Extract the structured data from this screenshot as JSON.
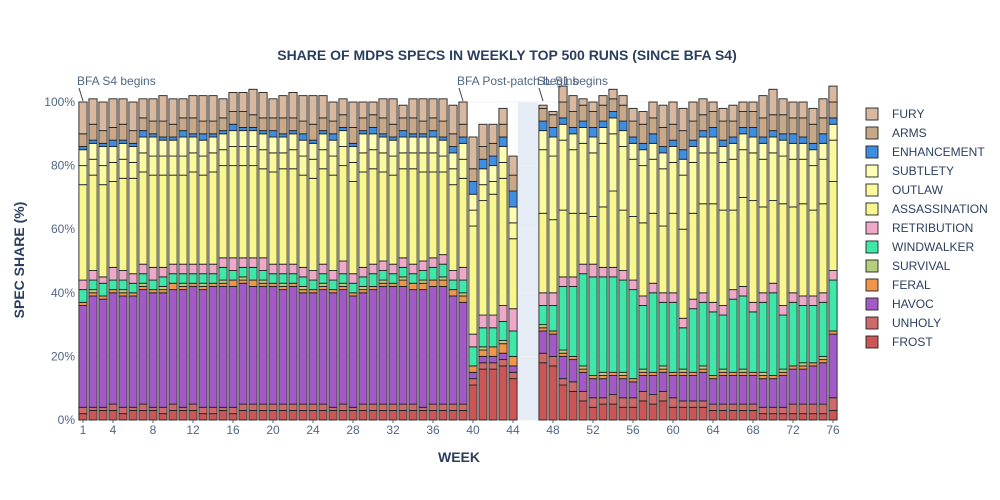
{
  "chart_data": {
    "type": "bar",
    "stacked": true,
    "title": "SHARE OF MDPS SPECS IN WEEKLY TOP 500 RUNS (SINCE BFA S4)",
    "xlabel": "WEEK",
    "ylabel": "SPEC SHARE (%)",
    "ylim": [
      0,
      100
    ],
    "y_ticks": [
      "0%",
      "20%",
      "40%",
      "60%",
      "80%",
      "100%"
    ],
    "x_ticks": [
      1,
      4,
      8,
      12,
      16,
      20,
      24,
      28,
      32,
      36,
      40,
      44,
      48,
      52,
      56,
      60,
      64,
      68,
      72,
      76
    ],
    "weeks": [
      1,
      2,
      3,
      4,
      5,
      6,
      7,
      8,
      9,
      10,
      11,
      12,
      13,
      14,
      15,
      16,
      17,
      18,
      19,
      20,
      21,
      22,
      23,
      24,
      25,
      26,
      27,
      28,
      29,
      30,
      31,
      32,
      33,
      34,
      35,
      36,
      37,
      38,
      39,
      40,
      41,
      42,
      43,
      44,
      47,
      48,
      49,
      50,
      51,
      52,
      53,
      54,
      55,
      56,
      57,
      58,
      59,
      60,
      61,
      62,
      63,
      64,
      65,
      66,
      67,
      68,
      69,
      70,
      71,
      72,
      73,
      74,
      75,
      76
    ],
    "gap_weeks": [
      45,
      46
    ],
    "legend_position": "right",
    "annotations": [
      {
        "week": 1,
        "text": "BFA S4 begins"
      },
      {
        "week": 39,
        "text": "BFA Post-patch begins"
      },
      {
        "week": 47,
        "text": "SL S1 begins"
      }
    ],
    "series": [
      {
        "name": "FROST",
        "color": "#cc5555",
        "values": [
          2,
          3,
          3,
          3,
          2,
          3,
          3,
          3,
          2,
          3,
          3,
          3,
          2,
          2,
          3,
          2,
          3,
          3,
          3,
          3,
          3,
          3,
          3,
          3,
          3,
          3,
          3,
          3,
          3,
          3,
          3,
          3,
          3,
          3,
          3,
          3,
          3,
          3,
          3,
          11,
          16,
          16,
          17,
          13,
          18,
          17,
          11,
          9,
          6,
          4,
          5,
          5,
          4,
          4,
          6,
          5,
          6,
          4,
          4,
          4,
          4,
          3,
          3,
          3,
          3,
          3,
          2,
          2,
          2,
          2,
          2,
          2,
          2,
          3
        ]
      },
      {
        "name": "UNHOLY",
        "color": "#d06a6a",
        "values": [
          2,
          1,
          1,
          2,
          2,
          1,
          2,
          1,
          2,
          2,
          1,
          2,
          2,
          2,
          1,
          2,
          2,
          2,
          2,
          2,
          2,
          2,
          2,
          2,
          2,
          1,
          2,
          1,
          2,
          2,
          2,
          2,
          2,
          2,
          1,
          2,
          2,
          2,
          2,
          2,
          2,
          2,
          2,
          2,
          3,
          3,
          2,
          3,
          3,
          3,
          2,
          3,
          3,
          3,
          3,
          3,
          3,
          3,
          2,
          2,
          2,
          2,
          2,
          2,
          2,
          2,
          2,
          2,
          2,
          3,
          3,
          3,
          3,
          4
        ]
      },
      {
        "name": "HAVOC",
        "color": "#a35ac8",
        "values": [
          32,
          35,
          34,
          35,
          35,
          35,
          36,
          36,
          36,
          36,
          37,
          37,
          37,
          38,
          38,
          38,
          38,
          37,
          37,
          37,
          36,
          37,
          35,
          35,
          36,
          36,
          36,
          35,
          35,
          36,
          37,
          37,
          37,
          36,
          37,
          37,
          37,
          34,
          32,
          2,
          2,
          2,
          2,
          2,
          7,
          7,
          7,
          7,
          6,
          6,
          6,
          6,
          6,
          5,
          5,
          6,
          6,
          7,
          8,
          8,
          9,
          8,
          9,
          9,
          9,
          9,
          9,
          9,
          10,
          11,
          11,
          12,
          13,
          20
        ]
      },
      {
        "name": "FERAL",
        "color": "#f0954a",
        "values": [
          1,
          1,
          1,
          1,
          1,
          1,
          1,
          1,
          1,
          2,
          1,
          1,
          1,
          1,
          1,
          2,
          1,
          2,
          1,
          1,
          1,
          1,
          1,
          1,
          1,
          1,
          1,
          1,
          1,
          1,
          1,
          1,
          2,
          2,
          2,
          2,
          2,
          2,
          2,
          2,
          2,
          3,
          3,
          3,
          1,
          1,
          1,
          1,
          1,
          1,
          1,
          1,
          1,
          1,
          1,
          1,
          1,
          1,
          1,
          1,
          1,
          1,
          1,
          1,
          1,
          1,
          1,
          1,
          1,
          1,
          1,
          1,
          1,
          1
        ]
      },
      {
        "name": "SURVIVAL",
        "color": "#b5cf7d",
        "values": [
          0,
          1,
          0,
          0,
          1,
          0,
          1,
          0,
          1,
          0,
          1,
          0,
          1,
          0,
          1,
          0,
          1,
          0,
          1,
          0,
          1,
          0,
          1,
          0,
          1,
          0,
          1,
          0,
          1,
          0,
          1,
          0,
          1,
          0,
          1,
          0,
          1,
          0,
          1,
          0,
          1,
          0,
          1,
          0,
          1,
          0,
          1,
          0,
          1,
          0,
          1,
          0,
          1,
          0,
          1,
          0,
          1,
          0,
          1,
          0,
          1,
          0,
          1,
          0,
          1,
          0,
          1,
          0,
          1,
          0,
          1,
          0,
          1,
          0
        ]
      },
      {
        "name": "WINDWALKER",
        "color": "#3ee8a8",
        "values": [
          4,
          3,
          4,
          3,
          3,
          3,
          3,
          3,
          3,
          3,
          3,
          3,
          3,
          3,
          4,
          3,
          3,
          4,
          3,
          3,
          3,
          3,
          3,
          3,
          3,
          3,
          3,
          3,
          3,
          4,
          3,
          3,
          3,
          3,
          3,
          4,
          4,
          3,
          4,
          6,
          6,
          6,
          6,
          8,
          6,
          8,
          20,
          22,
          29,
          31,
          30,
          30,
          29,
          28,
          20,
          25,
          20,
          22,
          13,
          20,
          20,
          20,
          17,
          23,
          23,
          19,
          22,
          26,
          17,
          20,
          18,
          18,
          17,
          16
        ]
      },
      {
        "name": "RETRIBUTION",
        "color": "#f0a8c8",
        "values": [
          3,
          3,
          2,
          4,
          3,
          3,
          3,
          4,
          3,
          3,
          3,
          3,
          3,
          3,
          3,
          4,
          3,
          3,
          4,
          3,
          3,
          3,
          3,
          3,
          3,
          3,
          4,
          3,
          3,
          3,
          3,
          3,
          3,
          3,
          3,
          3,
          3,
          3,
          4,
          4,
          4,
          4,
          5,
          7,
          4,
          4,
          3,
          3,
          3,
          4,
          3,
          3,
          3,
          3,
          3,
          3,
          3,
          3,
          3,
          3,
          3,
          3,
          3,
          3,
          3,
          3,
          3,
          3,
          3,
          3,
          3,
          3,
          3,
          3
        ]
      },
      {
        "name": "ASSASSINATION",
        "color": "#f7f78e",
        "values": [
          30,
          30,
          29,
          27,
          29,
          30,
          29,
          29,
          29,
          28,
          28,
          29,
          28,
          29,
          29,
          29,
          29,
          29,
          28,
          29,
          30,
          30,
          29,
          29,
          30,
          30,
          30,
          29,
          30,
          30,
          28,
          28,
          28,
          30,
          28,
          27,
          26,
          27,
          28,
          34,
          36,
          38,
          40,
          22,
          25,
          23,
          21,
          20,
          16,
          15,
          19,
          24,
          19,
          20,
          23,
          22,
          21,
          25,
          28,
          27,
          28,
          31,
          30,
          25,
          28,
          32,
          27,
          26,
          32,
          27,
          29,
          27,
          28,
          28
        ]
      },
      {
        "name": "OUTLAW",
        "color": "#fbfb9e",
        "values": [
          6,
          5,
          6,
          6,
          6,
          5,
          6,
          6,
          6,
          6,
          6,
          6,
          6,
          6,
          5,
          6,
          6,
          6,
          6,
          6,
          5,
          6,
          6,
          6,
          6,
          6,
          6,
          6,
          6,
          6,
          6,
          6,
          5,
          5,
          6,
          6,
          5,
          5,
          6,
          5,
          5,
          4,
          5,
          5,
          20,
          20,
          22,
          20,
          22,
          20,
          20,
          18,
          20,
          18,
          18,
          17,
          18,
          16,
          17,
          16,
          16,
          16,
          15,
          16,
          15,
          15,
          15,
          15,
          15,
          15,
          14,
          14,
          14,
          13
        ]
      },
      {
        "name": "SUBTLETY",
        "color": "#fdfdb4",
        "values": [
          5,
          5,
          6,
          5,
          5,
          5,
          5,
          6,
          5,
          5,
          6,
          5,
          5,
          5,
          5,
          5,
          5,
          5,
          5,
          5,
          5,
          5,
          5,
          5,
          5,
          5,
          5,
          5,
          6,
          5,
          5,
          5,
          5,
          5,
          5,
          5,
          5,
          5,
          5,
          5,
          5,
          5,
          5,
          5,
          6,
          6,
          5,
          5,
          5,
          5,
          5,
          5,
          5,
          5,
          5,
          5,
          5,
          5,
          5,
          5,
          5,
          5,
          5,
          5,
          5,
          5,
          5,
          5,
          5,
          5,
          5,
          5,
          5,
          5
        ]
      },
      {
        "name": "ENHANCEMENT",
        "color": "#3d8de0",
        "values": [
          1,
          1,
          1,
          2,
          1,
          1,
          2,
          1,
          1,
          1,
          2,
          1,
          2,
          1,
          1,
          2,
          1,
          1,
          1,
          2,
          1,
          1,
          2,
          1,
          1,
          2,
          1,
          1,
          1,
          2,
          1,
          1,
          2,
          1,
          1,
          2,
          1,
          2,
          2,
          4,
          3,
          3,
          3,
          5,
          3,
          3,
          2,
          2,
          2,
          3,
          2,
          2,
          3,
          2,
          2,
          3,
          2,
          2,
          3,
          2,
          2,
          3,
          2,
          2,
          2,
          3,
          2,
          2,
          2,
          3,
          2,
          2,
          3,
          2
        ]
      },
      {
        "name": "ARMS",
        "color": "#c9a887",
        "values": [
          4,
          5,
          4,
          4,
          5,
          4,
          4,
          4,
          5,
          4,
          4,
          5,
          4,
          4,
          4,
          4,
          5,
          4,
          4,
          4,
          5,
          4,
          4,
          5,
          4,
          4,
          4,
          5,
          4,
          4,
          5,
          4,
          4,
          5,
          4,
          4,
          5,
          4,
          4,
          4,
          4,
          4,
          4,
          5,
          4,
          4,
          5,
          5,
          5,
          5,
          5,
          4,
          5,
          5,
          6,
          5,
          6,
          5,
          6,
          6,
          5,
          5,
          6,
          5,
          5,
          5,
          6,
          5,
          6,
          5,
          6,
          6,
          5,
          5
        ]
      },
      {
        "name": "FURY",
        "color": "#d8b9a0",
        "values": [
          10,
          8,
          9,
          9,
          8,
          9,
          6,
          7,
          8,
          8,
          6,
          7,
          8,
          8,
          6,
          6,
          6,
          8,
          8,
          6,
          7,
          8,
          8,
          9,
          7,
          6,
          5,
          8,
          5,
          4,
          6,
          8,
          4,
          6,
          7,
          6,
          7,
          9,
          7,
          10,
          7,
          6,
          5,
          6,
          1,
          1,
          5,
          5,
          2,
          3,
          3,
          3,
          3,
          4,
          4,
          5,
          7,
          7,
          7,
          6,
          5,
          3,
          4,
          5,
          3,
          3,
          7,
          8,
          5,
          5,
          5,
          5,
          6,
          5
        ]
      }
    ]
  }
}
